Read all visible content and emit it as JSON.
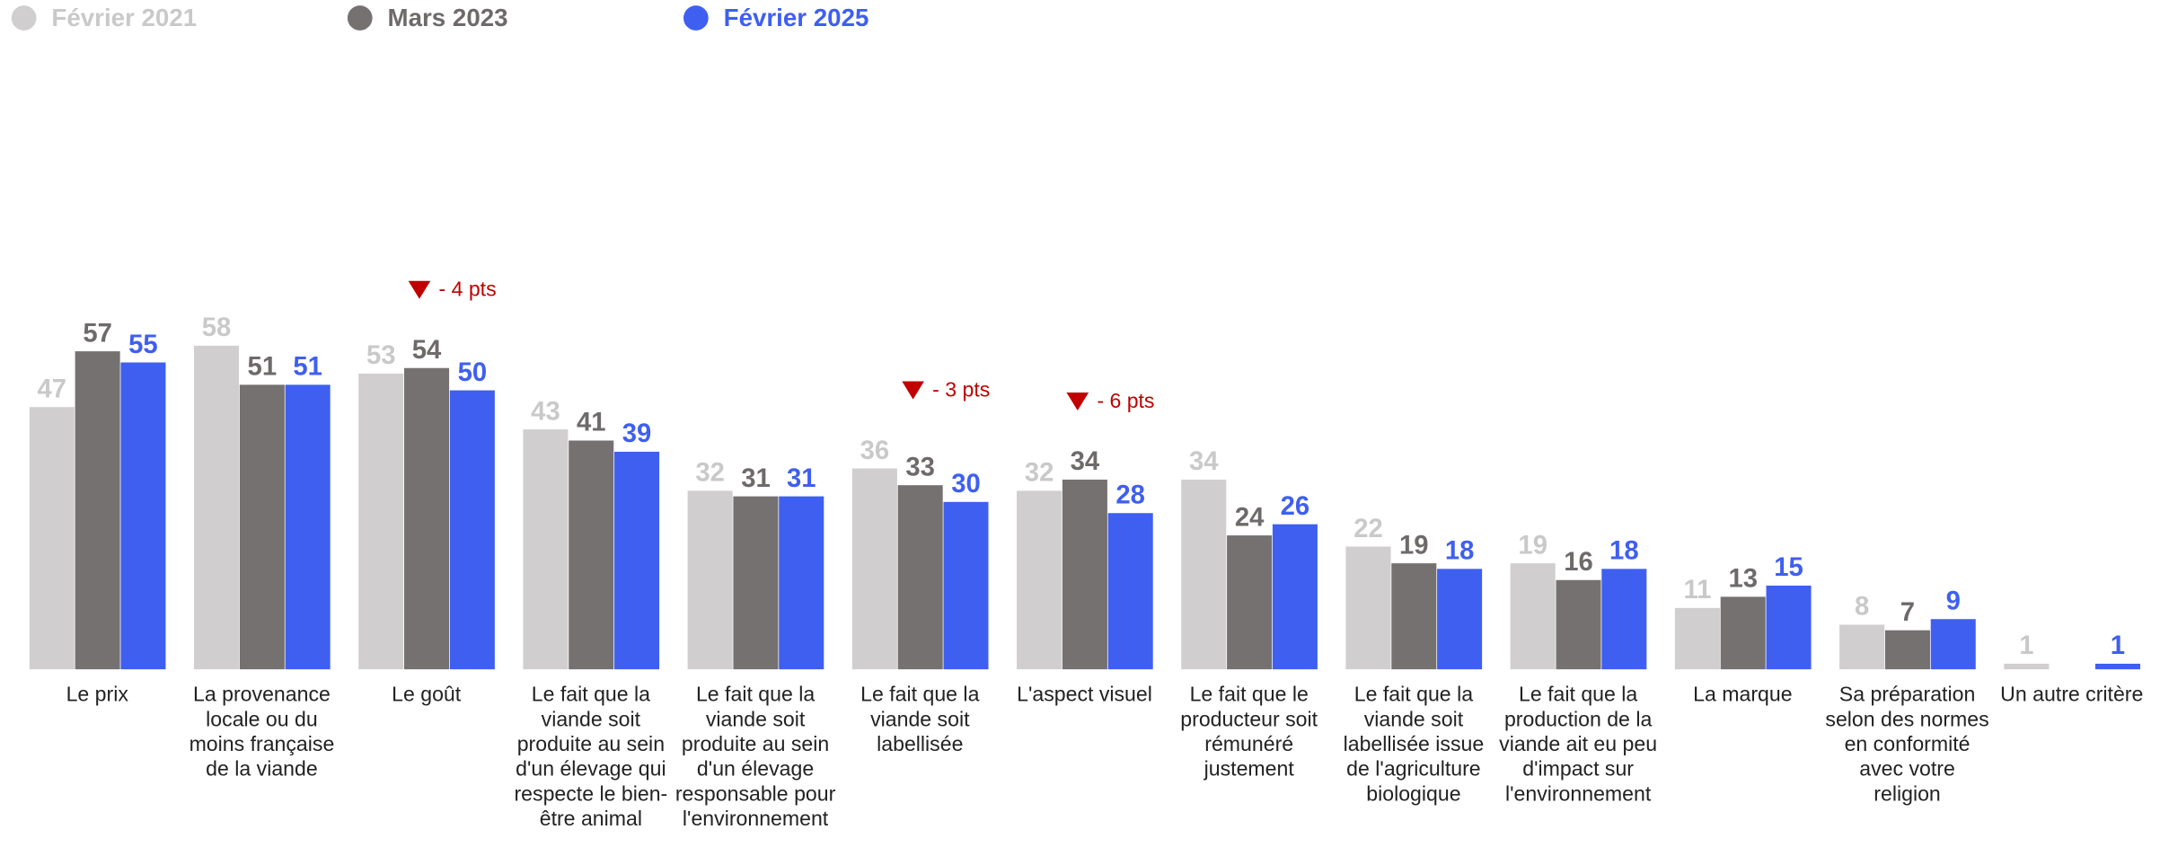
{
  "chart_data": {
    "type": "bar",
    "categories": [
      "Le prix",
      "La provenance locale ou du moins française de la viande",
      "Le goût",
      "Le fait que la viande soit produite au sein d'un élevage qui respecte le bien-être animal",
      "Le fait que la viande soit produite au sein d'un élevage responsable pour l'environnement",
      "Le fait que la viande soit labellisée",
      "L'aspect visuel",
      "Le fait que le producteur soit rémunéré justement",
      "Le fait que la viande soit labellisée issue de l'agriculture biologique",
      "Le fait que la production de la viande ait eu peu d'impact sur l'environnement",
      "La marque",
      "Sa préparation selon des normes en conformité avec votre religion",
      "Un autre critère"
    ],
    "series": [
      {
        "name": "Février 2021",
        "color": "#d0cece",
        "label_color": "#c9c9c9",
        "values": [
          47,
          58,
          53,
          43,
          32,
          36,
          32,
          34,
          22,
          19,
          11,
          8,
          1
        ]
      },
      {
        "name": "Mars 2023",
        "color": "#757171",
        "label_color": "#6e6a6a",
        "values": [
          57,
          51,
          54,
          41,
          31,
          33,
          34,
          24,
          19,
          16,
          13,
          7,
          null
        ]
      },
      {
        "name": "Février 2025",
        "color": "#3f5ff0",
        "label_color": "#3f5ff0",
        "values": [
          55,
          51,
          50,
          39,
          31,
          30,
          28,
          26,
          18,
          18,
          15,
          9,
          1
        ]
      }
    ],
    "ylim": [
      0,
      60
    ],
    "annotations": [
      {
        "text": "- 4 pts",
        "category": "Le goût"
      },
      {
        "text": "- 3 pts",
        "category": "Le fait que la viande soit labellisée"
      },
      {
        "text": "- 6 pts",
        "category": "L'aspect visuel"
      }
    ],
    "annotation_color": "#c00000"
  }
}
